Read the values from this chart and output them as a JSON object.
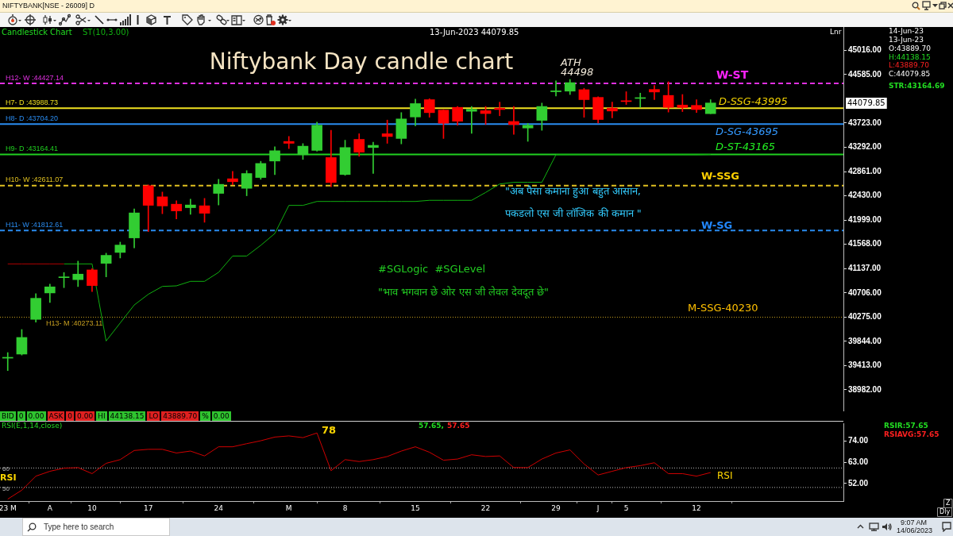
{
  "chart_data": [
    {
      "type": "candlestick",
      "title": "Niftybank Day candle chart",
      "categories": [
        null,
        null,
        null,
        null,
        null,
        null,
        null,
        null,
        null,
        null,
        null,
        null,
        null,
        null,
        null,
        null,
        null,
        null,
        null,
        null,
        null,
        null,
        null,
        null,
        null,
        null,
        null,
        null,
        null,
        null,
        null,
        null,
        null,
        null,
        null,
        null,
        null,
        null,
        null,
        null,
        null,
        null,
        null,
        null,
        null,
        null,
        null,
        null,
        null,
        null,
        null
      ],
      "ohlc": [
        [
          39545,
          39644,
          39324,
          39560
        ],
        [
          39617,
          40054,
          39600,
          39913
        ],
        [
          40234,
          40690,
          40186,
          40609
        ],
        [
          40704,
          40859,
          40534,
          40812
        ],
        [
          40975,
          41067,
          40798,
          40990
        ],
        [
          40940,
          41269,
          40817,
          41038
        ],
        [
          41113,
          41137,
          40728,
          40835
        ],
        [
          41230,
          41410,
          40990,
          41372
        ],
        [
          41424,
          41607,
          41325,
          41555
        ],
        [
          41682,
          42196,
          41504,
          42126
        ],
        [
          42610,
          42625,
          41795,
          42261
        ],
        [
          42412,
          42497,
          42112,
          42250
        ],
        [
          42281,
          42342,
          42021,
          42162
        ],
        [
          42219,
          42370,
          42102,
          42267
        ],
        [
          42253,
          42384,
          41960,
          42120
        ],
        [
          42473,
          42723,
          42267,
          42634
        ],
        [
          42733,
          42864,
          42628,
          42681
        ],
        [
          42563,
          42878,
          42431,
          42826
        ],
        [
          42755,
          43043,
          42723,
          43005
        ],
        [
          43048,
          43302,
          42808,
          43231
        ],
        [
          43396,
          43485,
          43269,
          43363
        ],
        [
          43161,
          43358,
          43076,
          43312
        ],
        [
          43237,
          43740,
          43221,
          43684
        ],
        [
          43110,
          43594,
          42590,
          42666
        ],
        [
          42808,
          43418,
          42794,
          43288
        ],
        [
          43433,
          43533,
          43132,
          43206
        ],
        [
          43288,
          43382,
          42827,
          43327
        ],
        [
          43533,
          43776,
          43363,
          43484
        ],
        [
          43449,
          43909,
          43353,
          43796
        ],
        [
          43831,
          44149,
          43675,
          44069
        ],
        [
          44139,
          44155,
          43826,
          43908
        ],
        [
          43953,
          43960,
          43449,
          43720
        ],
        [
          44002,
          44018,
          43684,
          43755
        ],
        [
          43932,
          44018,
          43539,
          43967
        ],
        [
          43943,
          44018,
          43700,
          43892
        ],
        [
          43988,
          44094,
          43853,
          43963
        ],
        [
          43751,
          44018,
          43524,
          43696
        ],
        [
          43635,
          43716,
          43398,
          43684
        ],
        [
          43771,
          44078,
          43594,
          44018
        ],
        [
          44280,
          44472,
          44204,
          44296
        ],
        [
          44290,
          44498,
          44230,
          44441
        ],
        [
          44316,
          44341,
          43826,
          44139
        ],
        [
          44179,
          44190,
          43725,
          43786
        ],
        [
          43988,
          44094,
          43816,
          43937
        ],
        [
          44120,
          44280,
          44053,
          44105
        ],
        [
          44160,
          44255,
          44002,
          44175
        ],
        [
          44320,
          44391,
          44139,
          44275
        ],
        [
          44214,
          44457,
          43918,
          44002
        ],
        [
          44043,
          44230,
          43927,
          43998
        ],
        [
          44037,
          44139,
          43912,
          43963
        ],
        [
          43889.7,
          44138.15,
          43889.7,
          44079.85
        ]
      ],
      "colors": [
        "#32cd32",
        "#32cd32",
        "#32cd32",
        "#32cd32",
        "#32cd32",
        "#32cd32",
        "#ff0000",
        "#32cd32",
        "#32cd32",
        "#32cd32",
        "#ff0000",
        "#ff0000",
        "#ff0000",
        "#32cd32",
        "#ff0000",
        "#32cd32",
        "#ff0000",
        "#32cd32",
        "#32cd32",
        "#32cd32",
        "#ff0000",
        "#32cd32",
        "#32cd32",
        "#ff0000",
        "#32cd32",
        "#ff0000",
        "#32cd32",
        "#ff0000",
        "#32cd32",
        "#32cd32",
        "#ff0000",
        "#ff0000",
        "#ff0000",
        "#32cd32",
        "#ff0000",
        "#ff0000",
        "#ff0000",
        "#32cd32",
        "#32cd32",
        "#32cd32",
        "#32cd32",
        "#ff0000",
        "#ff0000",
        "#ff0000",
        "#ff0000",
        "#32cd32",
        "#ff0000",
        "#ff0000",
        "#ff0000",
        "#ff0000",
        "#32cd32"
      ],
      "series": [
        {
          "type": "line",
          "color": "#b00000",
          "values": [
            41220,
            41220,
            41220,
            41220,
            41220,
            null,
            null,
            null,
            null,
            null,
            null,
            null,
            null,
            null,
            null,
            null,
            null,
            null,
            null,
            null,
            null,
            null,
            null,
            null,
            null,
            null,
            null,
            null,
            null,
            null,
            null,
            null,
            null,
            null,
            null,
            null,
            null,
            null,
            null,
            null,
            null,
            null,
            null,
            null,
            null,
            null,
            null,
            null,
            null,
            null,
            null
          ]
        },
        {
          "type": "line",
          "name": "ST(10,3.00)",
          "color": "#10b010",
          "values": [
            null,
            null,
            null,
            null,
            41220,
            41220,
            41220,
            39850,
            40170,
            40490,
            40680,
            40820,
            40830,
            40910,
            40910,
            41070,
            41360,
            41360,
            41550,
            41760,
            42260,
            42260,
            42330,
            42330,
            42330,
            42330,
            42330,
            42330,
            42330,
            42330,
            42350,
            42350,
            42350,
            42350,
            42490,
            42640,
            42670,
            42670,
            42670,
            43160,
            43160,
            43160,
            43160,
            43160,
            43160,
            43160,
            43160,
            43160,
            43160,
            43160,
            43164.69
          ]
        }
      ],
      "ylim": [
        38600,
        45430
      ],
      "yticks": [
        {
          "value": 38982,
          "label": "38982.00"
        },
        {
          "value": 39413,
          "label": "39413.00"
        },
        {
          "value": 39844,
          "label": "39844.00"
        },
        {
          "value": 40275,
          "label": "40275.00"
        },
        {
          "value": 40706,
          "label": "40706.00"
        },
        {
          "value": 41137,
          "label": "41137.00"
        },
        {
          "value": 41568,
          "label": "41568.00"
        },
        {
          "value": 41999,
          "label": "41999.00"
        },
        {
          "value": 42430,
          "label": "42430.00"
        },
        {
          "value": 42861,
          "label": "42861.00"
        },
        {
          "value": 43292,
          "label": "43292.00"
        },
        {
          "value": 43723,
          "label": "43723.00"
        },
        {
          "value": 44585,
          "label": "44585.00"
        },
        {
          "value": 45016,
          "label": "45016.00"
        }
      ],
      "ref_lines": [
        {
          "axis": "y",
          "value": 44427.14,
          "label": "H12- W :44427.14",
          "color": "#e030e0",
          "line_style": "dashed"
        },
        {
          "axis": "y",
          "value": 43988.73,
          "label": "H7- D :43988.73",
          "color": "#f0e020",
          "line_style": "solid"
        },
        {
          "axis": "y",
          "value": 43704.2,
          "label": "H8- D :43704.20",
          "color": "#2a8cf0",
          "line_style": "solid"
        },
        {
          "axis": "y",
          "value": 43164.41,
          "label": "H9- D :43164.41",
          "color": "#20d020",
          "line_style": "solid"
        },
        {
          "axis": "y",
          "value": 42611.07,
          "label": "H10- W :42611.07",
          "color": "#e0c020",
          "line_style": "dashed"
        },
        {
          "axis": "y",
          "value": 41812.61,
          "label": "H11- W :41812.61",
          "color": "#2a8cf0",
          "line_style": "dashed"
        },
        {
          "axis": "y",
          "value": 40273.11,
          "label": "H13- M :40273.11",
          "color": "#c8a020",
          "line_style": "dotted"
        }
      ],
      "annotations": [
        "NIFTYBANK[NSE - 26009] D",
        "Candlestick Chart",
        "13-Jun-2023 44079.85",
        "Lnr",
        "14-Jun-23",
        "13-Jun-23",
        "O:43889.70",
        "H:44138.15",
        "L:43889.70",
        "C:44079.85",
        "STR:43164.69",
        "44079.85",
        "ATH",
        {
          "text": "44498",
          "y": 44498
        },
        {
          "text": "W-ST",
          "y": 44427.14
        },
        {
          "text": "D-SSG-43995",
          "y": 43988.73
        },
        {
          "text": "D-SG-43695",
          "y": 43704.2
        },
        {
          "text": "D-ST-43165",
          "y": 43164.41
        },
        {
          "text": "W-SSG",
          "y": 42611.07
        },
        {
          "text": "W-SG",
          "y": 41812.61
        },
        {
          "text": "M-SSG-40230",
          "y": 40273.11
        },
        "\"अब पैसा कमाना हुआ बहुत आसान,",
        "पकडलो एस जी लॉजिक की कमान \"",
        "#SGLogic  #SGLevel",
        "\"भाव भगवान छे ओर एस जी लेवल देवदूत छे\"",
        "BID",
        "0",
        "0.00",
        "ASK",
        "0",
        "0.00",
        "HI",
        "44138.15",
        "LO",
        "43889.70",
        "%",
        "0.00",
        "Type here to search",
        "9:07 AM",
        "14/06/2023"
      ],
      "tick_labels": "y",
      "marker": "none"
    },
    {
      "type": "line",
      "title": "RSI(E,1,14,close)",
      "categories": [
        "23 M",
        null,
        null,
        "A",
        null,
        null,
        "10",
        null,
        null,
        null,
        "17",
        null,
        null,
        null,
        null,
        "24",
        null,
        null,
        null,
        null,
        "M",
        null,
        null,
        null,
        "8",
        null,
        null,
        null,
        null,
        "15",
        null,
        null,
        null,
        null,
        "22",
        null,
        null,
        null,
        null,
        "29",
        null,
        null,
        "J",
        null,
        "5",
        null,
        null,
        null,
        null,
        "12",
        null
      ],
      "series": [
        {
          "color": "#d00000",
          "values": [
            44,
            48.6,
            55.8,
            58.3,
            59.9,
            60.2,
            57.1,
            62.4,
            64.3,
            69,
            69.6,
            69.6,
            67.7,
            68.7,
            66.2,
            70.9,
            70.9,
            72.5,
            74,
            75.9,
            76.5,
            75.6,
            78,
            58.6,
            64.3,
            63.3,
            64.3,
            65.9,
            68.7,
            70.9,
            68.1,
            64,
            64.6,
            66.8,
            65.9,
            66.2,
            60.2,
            60.2,
            64.6,
            67.7,
            69.3,
            62.1,
            56.4,
            58.3,
            60.2,
            61.2,
            62.7,
            57.1,
            57.1,
            55.8,
            57.65
          ]
        }
      ],
      "ylim": [
        43,
        83
      ],
      "yticks": [
        {
          "value": 52,
          "label": "52.00"
        },
        {
          "value": 63,
          "label": "63.00"
        },
        {
          "value": 74,
          "label": "74.00"
        }
      ],
      "ref_lines": [
        {
          "axis": "y",
          "value": 60,
          "label": "60",
          "color": "#bbbbbb",
          "line_style": "dotted"
        },
        {
          "axis": "y",
          "value": 50,
          "label": "50",
          "color": "#bbbbbb",
          "line_style": "dotted"
        }
      ],
      "annotations": [
        "57.65,",
        "57.65",
        "RSIR:57.65",
        "RSIAVG:57.65",
        "78",
        "RSI",
        "RSI",
        "Z",
        "Dly"
      ],
      "marker": "none"
    }
  ]
}
